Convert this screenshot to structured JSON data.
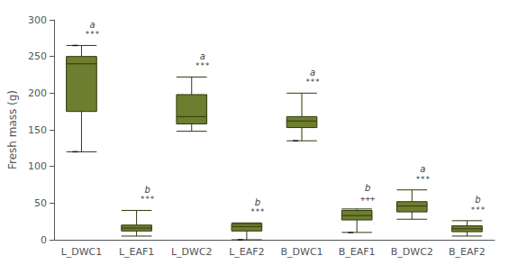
{
  "chart_data": {
    "type": "box",
    "categories": [
      "L_DWC1",
      "L_EAF1",
      "L_DWC2",
      "L_EAF2",
      "B_DWC1",
      "B_EAF1",
      "B_DWC2",
      "B_EAF2"
    ],
    "boxes": [
      {
        "whisker_low": 120,
        "q1": 175,
        "median": 240,
        "q3": 250,
        "whisker_high": 265
      },
      {
        "whisker_low": 5,
        "q1": 12,
        "median": 16,
        "q3": 20,
        "whisker_high": 40
      },
      {
        "whisker_low": 148,
        "q1": 158,
        "median": 168,
        "q3": 198,
        "whisker_high": 222
      },
      {
        "whisker_low": 0,
        "q1": 12,
        "median": 18,
        "q3": 22,
        "whisker_high": 23
      },
      {
        "whisker_low": 135,
        "q1": 153,
        "median": 162,
        "q3": 168,
        "whisker_high": 200
      },
      {
        "whisker_low": 10,
        "q1": 27,
        "median": 33,
        "q3": 40,
        "whisker_high": 42
      },
      {
        "whisker_low": 28,
        "q1": 38,
        "median": 46,
        "q3": 52,
        "whisker_high": 68
      },
      {
        "whisker_low": 5,
        "q1": 11,
        "median": 15,
        "q3": 19,
        "whisker_high": 26
      }
    ],
    "annotations": [
      {
        "letter": "a",
        "sig": "***"
      },
      {
        "letter": "b",
        "sig": "***"
      },
      {
        "letter": "a",
        "sig": "***"
      },
      {
        "letter": "b",
        "sig": "***"
      },
      {
        "letter": "a",
        "sig": "***"
      },
      {
        "letter": "b",
        "sig": "+++"
      },
      {
        "letter": "a",
        "sig": "***"
      },
      {
        "letter": "b",
        "sig": "***"
      }
    ],
    "markers": [
      {
        "category": "L_DWC1",
        "value": 265
      },
      {
        "category": "L_DWC1",
        "value": 120
      },
      {
        "category": "L_EAF2",
        "value": 0
      },
      {
        "category": "B_DWC1",
        "value": 135
      },
      {
        "category": "B_EAF1",
        "value": 10
      }
    ],
    "color": "#6e7d2f",
    "ylabel": "Fresh mass (g)",
    "ylim": [
      0,
      300
    ],
    "yticks": [
      0,
      50,
      100,
      150,
      200,
      250,
      300
    ],
    "grid": false
  }
}
